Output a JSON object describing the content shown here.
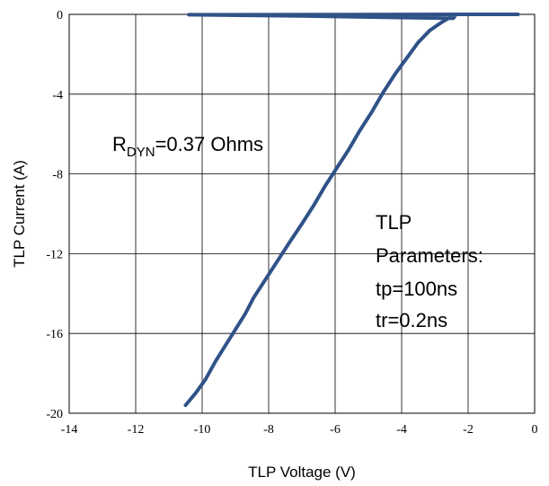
{
  "chart_data": {
    "type": "line",
    "title": "",
    "xlabel": "TLP Voltage (V)",
    "ylabel": "TLP Current (A)",
    "xlim": [
      -14,
      0
    ],
    "ylim": [
      -20,
      0
    ],
    "xticks": [
      "-14",
      "-12",
      "-10",
      "-8",
      "-6",
      "-4",
      "-2",
      "0"
    ],
    "yticks": [
      "0",
      "-4",
      "-8",
      "-12",
      "-16",
      "-20"
    ],
    "grid": true,
    "legend": "none",
    "series_color": "#2f5288",
    "series": [
      {
        "x": [
          -10.5,
          -10.2,
          -9.9,
          -9.6,
          -9.3,
          -9.0,
          -8.7,
          -8.45,
          -8.1,
          -7.75,
          -7.4,
          -7.0,
          -6.65,
          -6.3,
          -5.95,
          -5.6,
          -5.25,
          -4.9,
          -4.55,
          -4.2,
          -3.85,
          -3.5,
          -3.15,
          -2.8,
          -2.55,
          -2.4,
          -2.45,
          -4.5,
          -7.0,
          -10.4,
          -6.0,
          -2.0,
          -0.5
        ],
        "y": [
          -19.6,
          -19.0,
          -18.3,
          -17.4,
          -16.6,
          -15.8,
          -15.0,
          -14.2,
          -13.3,
          -12.4,
          -11.5,
          -10.5,
          -9.6,
          -8.6,
          -7.7,
          -6.8,
          -5.8,
          -4.9,
          -3.9,
          -3.0,
          -2.2,
          -1.4,
          -0.8,
          -0.4,
          -0.15,
          -0.1,
          -0.2,
          -0.15,
          -0.08,
          -0.02,
          -0.01,
          0.0,
          0.0
        ]
      }
    ],
    "annotations": {
      "rdyn_prefix": "R",
      "rdyn_sub": "DYN",
      "rdyn_value": "=0.37 Ohms",
      "params_line1": "TLP",
      "params_line2": "Parameters:",
      "params_line3": "tp=100ns",
      "params_line4": "tr=0.2ns"
    }
  }
}
